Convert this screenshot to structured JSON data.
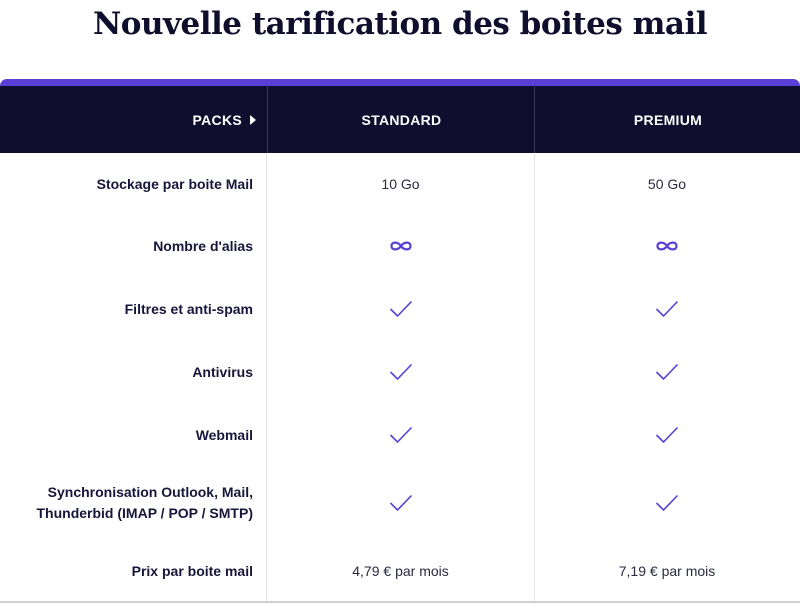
{
  "page_title": "Nouvelle tarification des boites mail",
  "colors": {
    "accent": "#5a3fd6",
    "header_bg": "#0f0e2e",
    "text": "#16163a"
  },
  "header": {
    "packs_label": "PACKS",
    "packs_icon": "caret-right-icon",
    "plans": [
      "STANDARD",
      "PREMIUM"
    ]
  },
  "rows": [
    {
      "label": "Stockage par boite Mail",
      "standard": "10 Go",
      "premium": "50 Go"
    },
    {
      "label": "Nombre d'alias",
      "standard_icon": "infinity-icon",
      "premium_icon": "infinity-icon"
    },
    {
      "label": "Filtres et anti-spam",
      "standard_icon": "check-icon",
      "premium_icon": "check-icon"
    },
    {
      "label": "Antivirus",
      "standard_icon": "check-icon",
      "premium_icon": "check-icon"
    },
    {
      "label": "Webmail",
      "standard_icon": "check-icon",
      "premium_icon": "check-icon"
    },
    {
      "label_line1": "Synchronisation Outlook, Mail,",
      "label_line2": "Thunderbid (IMAP / POP / SMTP)",
      "standard_icon": "check-icon",
      "premium_icon": "check-icon"
    },
    {
      "label": "Prix par boite mail",
      "standard": "4,79 € par mois",
      "premium": "7,19 € par mois"
    }
  ]
}
